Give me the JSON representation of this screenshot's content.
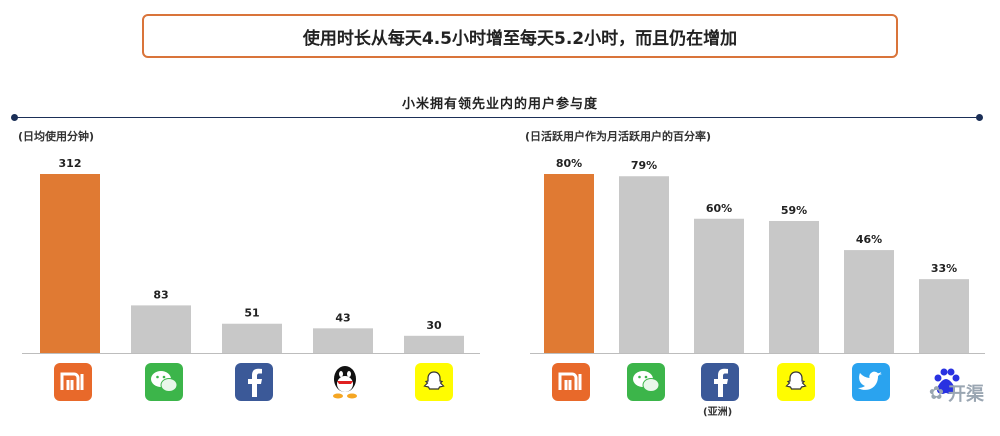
{
  "headline": "使用时长从每天4.5小时增至每天5.2小时，而且仍在增加",
  "section_title": "小米拥有领先业内的用户参与度",
  "watermark": "开渠",
  "colors": {
    "highlight": "#e07a33",
    "bar": "#c8c8c8",
    "accent": "#d9743a",
    "rule": "#1b2f57"
  },
  "chart_data": [
    {
      "type": "bar",
      "title": "",
      "subtitle": "(日均使用分钟)",
      "categories": [
        "mi-logo",
        "wechat-logo",
        "facebook-logo",
        "qq-logo",
        "snapchat-logo"
      ],
      "values": [
        312,
        83,
        51,
        43,
        30
      ],
      "value_labels": [
        "312",
        "83",
        "51",
        "43",
        "30"
      ],
      "highlight_index": 0,
      "ylim": [
        0,
        312
      ],
      "grid": false
    },
    {
      "type": "bar",
      "title": "",
      "subtitle": "(日活跃用户作为月活跃用户的百分率)",
      "categories": [
        "mi-logo",
        "wechat-logo",
        "facebook-logo",
        "snapchat-logo",
        "twitter-logo",
        "baidu-logo"
      ],
      "category_captions": [
        "",
        "",
        "(亚洲)",
        "",
        "",
        ""
      ],
      "values": [
        80,
        79,
        60,
        59,
        46,
        33
      ],
      "value_labels": [
        "80%",
        "79%",
        "60%",
        "59%",
        "46%",
        "33%"
      ],
      "highlight_index": 0,
      "ylim": [
        0,
        80
      ],
      "grid": false
    }
  ]
}
